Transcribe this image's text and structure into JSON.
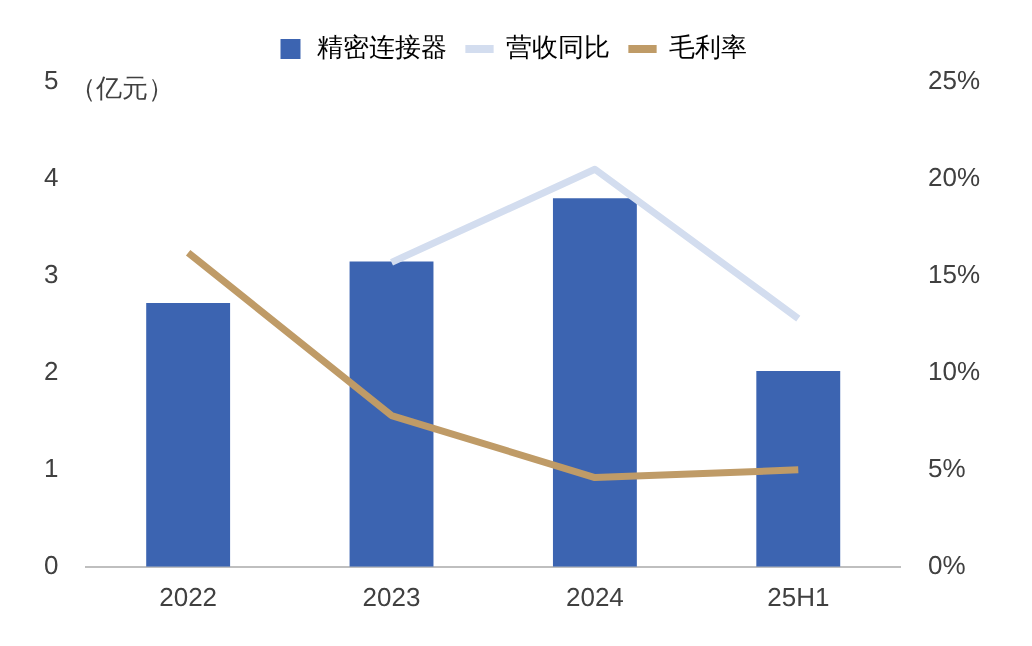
{
  "chart_data": {
    "type": "bar",
    "ylabel": "（亿元）",
    "categories": [
      "2022",
      "2023",
      "2024",
      "25H1"
    ],
    "series": [
      {
        "name": "精密连接器",
        "color": "#3c64b1",
        "values": [
          2.72,
          3.15,
          3.8,
          2.02
        ]
      },
      {
        "name": "营收同比",
        "type": "line",
        "axis": "y2",
        "color": "#d3ddef",
        "values": [
          null,
          15.7,
          20.5,
          12.8
        ]
      },
      {
        "name": "毛利率",
        "type": "line",
        "axis": "y2",
        "color": "#bf9b67",
        "values": [
          16.2,
          7.8,
          4.6,
          5.0
        ]
      }
    ],
    "ylim": [
      0,
      5
    ],
    "yticks": [
      0,
      1,
      2,
      3,
      4,
      5
    ],
    "y2lim": [
      0,
      25
    ],
    "y2ticks": [
      {
        "value": 0,
        "label": "0%"
      },
      {
        "value": 5,
        "label": "5%"
      },
      {
        "value": 10,
        "label": "10%"
      },
      {
        "value": 15,
        "label": "15%"
      },
      {
        "value": 20,
        "label": "20%"
      },
      {
        "value": 25,
        "label": "25%"
      }
    ],
    "legend": "top",
    "grid": false,
    "marker": "none"
  }
}
